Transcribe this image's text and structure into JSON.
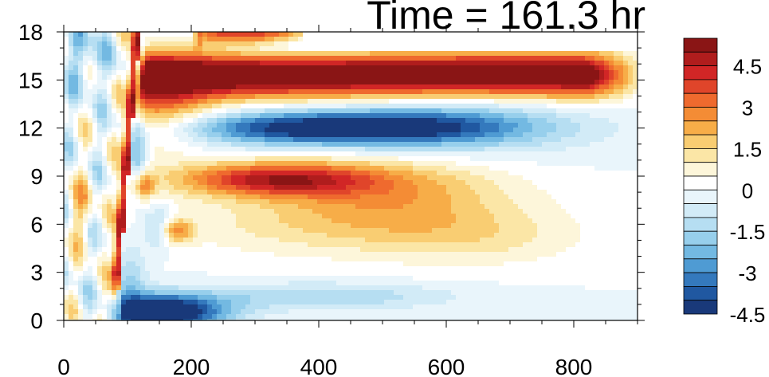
{
  "chart_data": {
    "type": "heatmap",
    "title": "Time = 161.3 hr",
    "xlabel": "",
    "ylabel": "",
    "xlim": [
      0,
      900
    ],
    "ylim": [
      0,
      18
    ],
    "x_ticks": [
      0,
      200,
      400,
      600,
      800
    ],
    "y_ticks": [
      0,
      3,
      6,
      9,
      12,
      15,
      18
    ],
    "colorbar": {
      "ticks": [
        "4.5",
        "3",
        "1.5",
        "0",
        "-1.5",
        "-3",
        "-4.5"
      ],
      "colors": [
        "#8a1515",
        "#b01d1d",
        "#d12626",
        "#e0452a",
        "#ef6a2e",
        "#f48c35",
        "#f7ad48",
        "#f9cd72",
        "#fbe6a6",
        "#fdf6da",
        "#ffffff",
        "#e9f5fb",
        "#d2ebf7",
        "#b6def2",
        "#97cfec",
        "#73b9e2",
        "#4f9bd3",
        "#3479bd",
        "#2058a1",
        "#19397a"
      ]
    },
    "features": [
      {
        "name": "upper positive band",
        "x": [
          100,
          880
        ],
        "y": 15.3,
        "sign": "positive",
        "peak": 5.5
      },
      {
        "name": "upper negative band",
        "x": [
          250,
          560
        ],
        "y": 12,
        "sign": "negative",
        "peak": -4.5
      },
      {
        "name": "mid positive band",
        "x": [
          220,
          520
        ],
        "y": 8.8,
        "sign": "positive",
        "peak": 4
      },
      {
        "name": "near-surface negative band",
        "x": [
          80,
          230
        ],
        "y": 0.6,
        "sign": "negative",
        "peak": -5.5
      },
      {
        "name": "front",
        "x": [
          80,
          100
        ],
        "y": [
          0,
          17
        ],
        "sign": "positive",
        "peak": 5
      }
    ]
  }
}
